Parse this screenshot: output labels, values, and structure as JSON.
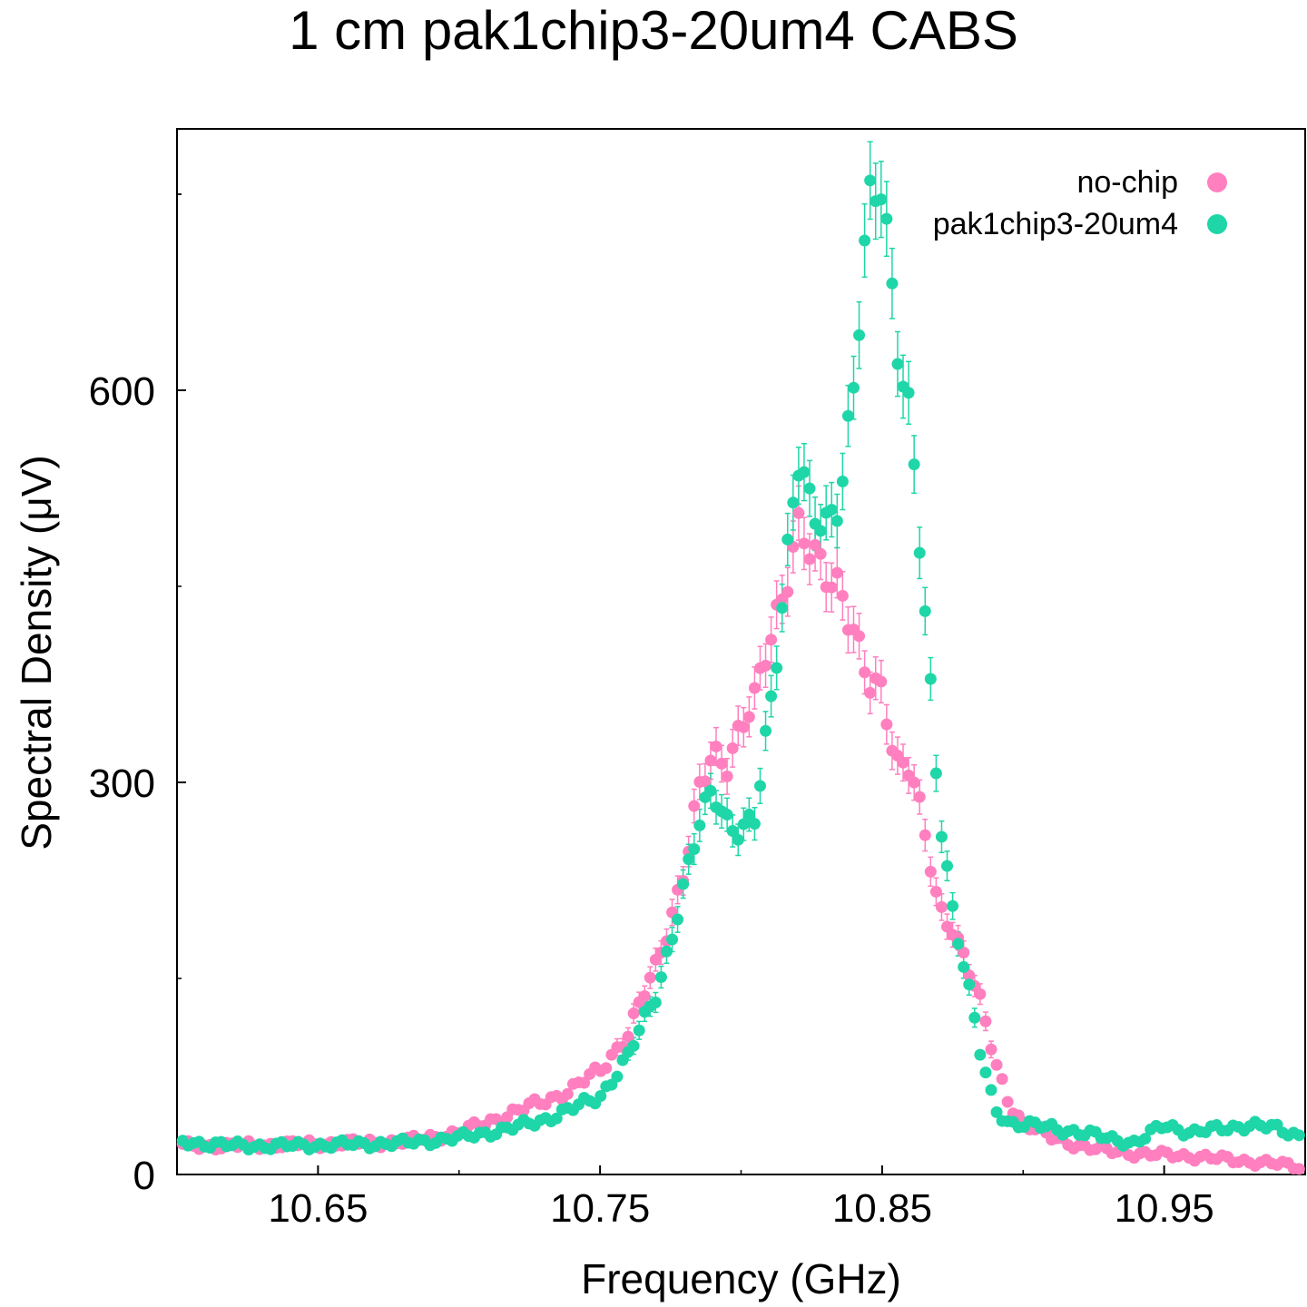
{
  "chart_data": {
    "type": "scatter",
    "title": "1 cm pak1chip3-20um4 CABS",
    "xlabel": "Frequency (GHz)",
    "ylabel": "Spectral Density (μV)",
    "xlim": [
      10.6,
      11.0
    ],
    "ylim": [
      0,
      800
    ],
    "xticks": [
      10.65,
      10.75,
      10.85,
      10.95
    ],
    "xtick_labels": [
      "10.65",
      "10.75",
      "10.85",
      "10.95"
    ],
    "yticks": [
      0,
      300,
      600
    ],
    "ytick_labels": [
      "0",
      "300",
      "600"
    ],
    "legend_placement": "top-right",
    "grid": false,
    "series": [
      {
        "name": "no-chip",
        "color": "#ff7fbf",
        "x": [
          10.602,
          10.62,
          10.64,
          10.66,
          10.68,
          10.7,
          10.71,
          10.72,
          10.73,
          10.74,
          10.75,
          10.76,
          10.77,
          10.78,
          10.785,
          10.79,
          10.795,
          10.8,
          10.805,
          10.81,
          10.815,
          10.82,
          10.825,
          10.83,
          10.835,
          10.84,
          10.845,
          10.85,
          10.855,
          10.86,
          10.865,
          10.87,
          10.875,
          10.88,
          10.885,
          10.89,
          10.895,
          10.9,
          10.91,
          10.92,
          10.93,
          10.94,
          10.95,
          10.96,
          10.97,
          10.98,
          10.99,
          10.998
        ],
        "y": [
          22,
          22,
          23,
          24,
          25,
          32,
          40,
          48,
          56,
          65,
          80,
          108,
          160,
          235,
          290,
          320,
          318,
          345,
          360,
          405,
          450,
          500,
          470,
          455,
          455,
          420,
          372,
          365,
          318,
          318,
          260,
          200,
          190,
          165,
          130,
          85,
          55,
          40,
          28,
          22,
          18,
          16,
          15,
          14,
          12,
          10,
          8,
          6
        ]
      },
      {
        "name": "pak1chip3-20um4",
        "color": "#1fd6a8",
        "x": [
          10.602,
          10.62,
          10.64,
          10.66,
          10.68,
          10.7,
          10.71,
          10.72,
          10.73,
          10.74,
          10.75,
          10.76,
          10.77,
          10.78,
          10.785,
          10.79,
          10.795,
          10.8,
          10.805,
          10.81,
          10.815,
          10.82,
          10.825,
          10.83,
          10.835,
          10.84,
          10.845,
          10.85,
          10.855,
          10.86,
          10.865,
          10.87,
          10.875,
          10.88,
          10.885,
          10.89,
          10.895,
          10.9,
          10.91,
          10.92,
          10.93,
          10.94,
          10.95,
          10.96,
          10.97,
          10.98,
          10.99,
          10.998
        ],
        "y": [
          25,
          22,
          22,
          23,
          24,
          28,
          32,
          36,
          42,
          50,
          60,
          90,
          140,
          220,
          265,
          300,
          272,
          258,
          270,
          355,
          450,
          545,
          500,
          500,
          525,
          600,
          730,
          765,
          650,
          575,
          430,
          285,
          205,
          150,
          90,
          50,
          40,
          38,
          36,
          32,
          28,
          24,
          38,
          32,
          35,
          38,
          35,
          30
        ]
      }
    ]
  }
}
